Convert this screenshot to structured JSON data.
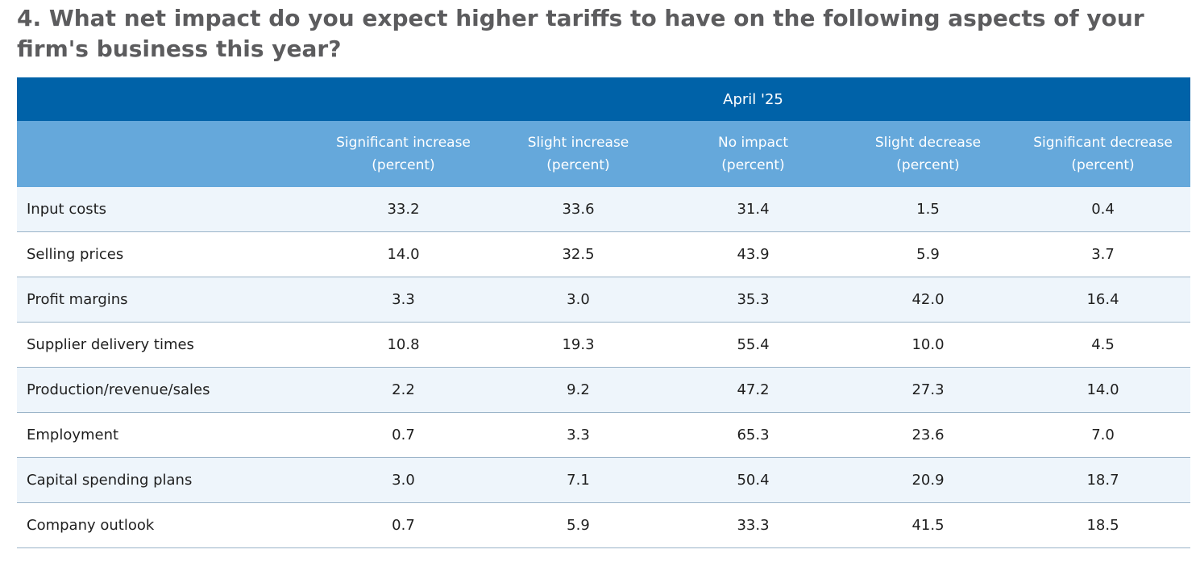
{
  "title": "4. What net impact do you expect higher tariffs to have on the following aspects of your firm's business this year?",
  "table": {
    "group_header": "April '25",
    "columns": [
      {
        "name": "Significant increase",
        "unit": "(percent)"
      },
      {
        "name": "Slight increase",
        "unit": "(percent)"
      },
      {
        "name": "No impact",
        "unit": "(percent)"
      },
      {
        "name": "Slight decrease",
        "unit": "(percent)"
      },
      {
        "name": "Significant decrease",
        "unit": "(percent)"
      }
    ],
    "rows": [
      {
        "label": "Input costs",
        "values": [
          "33.2",
          "33.6",
          "31.4",
          "1.5",
          "0.4"
        ]
      },
      {
        "label": "Selling prices",
        "values": [
          "14.0",
          "32.5",
          "43.9",
          "5.9",
          "3.7"
        ]
      },
      {
        "label": "Profit margins",
        "values": [
          "3.3",
          "3.0",
          "35.3",
          "42.0",
          "16.4"
        ]
      },
      {
        "label": "Supplier delivery times",
        "values": [
          "10.8",
          "19.3",
          "55.4",
          "10.0",
          "4.5"
        ]
      },
      {
        "label": "Production/revenue/sales",
        "values": [
          "2.2",
          "9.2",
          "47.2",
          "27.3",
          "14.0"
        ]
      },
      {
        "label": "Employment",
        "values": [
          "0.7",
          "3.3",
          "65.3",
          "23.6",
          "7.0"
        ]
      },
      {
        "label": "Capital spending plans",
        "values": [
          "3.0",
          "7.1",
          "50.4",
          "20.9",
          "18.7"
        ]
      },
      {
        "label": "Company outlook",
        "values": [
          "0.7",
          "5.9",
          "33.3",
          "41.5",
          "18.5"
        ]
      }
    ]
  },
  "colors": {
    "title_text": "#5c5c5e",
    "group_header_bg": "#0062a8",
    "column_header_bg": "#65a8db",
    "alt_row_bg": "#eef5fb",
    "row_border": "#9ab3c8"
  }
}
